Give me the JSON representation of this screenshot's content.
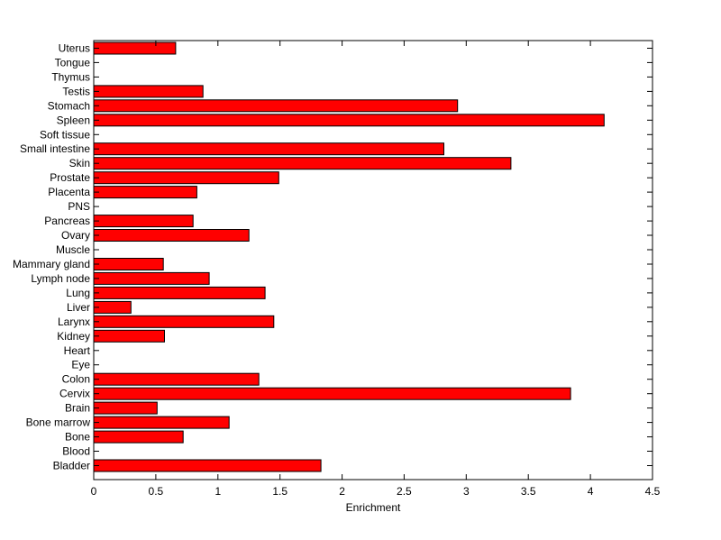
{
  "chart_data": {
    "type": "bar",
    "orientation": "horizontal",
    "xlabel": "Enrichment",
    "ylabel": "",
    "title": "",
    "xlim": [
      0,
      4.5
    ],
    "xticks": [
      0,
      0.5,
      1,
      1.5,
      2,
      2.5,
      3,
      3.5,
      4,
      4.5
    ],
    "xtick_labels": [
      "0",
      "0.5",
      "1",
      "1.5",
      "2",
      "2.5",
      "3",
      "3.5",
      "4",
      "4.5"
    ],
    "grid": false,
    "bar_color": "#ff0000",
    "bar_edge_color": "#000000",
    "categories": [
      "Bladder",
      "Blood",
      "Bone",
      "Bone marrow",
      "Brain",
      "Cervix",
      "Colon",
      "Eye",
      "Heart",
      "Kidney",
      "Larynx",
      "Liver",
      "Lung",
      "Lymph node",
      "Mammary gland",
      "Muscle",
      "Ovary",
      "Pancreas",
      "PNS",
      "Placenta",
      "Prostate",
      "Skin",
      "Small intestine",
      "Soft tissue",
      "Spleen",
      "Stomach",
      "Testis",
      "Thymus",
      "Tongue",
      "Uterus"
    ],
    "values": [
      1.83,
      0,
      0.72,
      1.09,
      0.51,
      3.84,
      1.33,
      0,
      0,
      0.57,
      1.45,
      0.3,
      1.38,
      0.93,
      0.56,
      0,
      1.25,
      0.8,
      0,
      0.83,
      1.49,
      3.36,
      2.82,
      0,
      4.11,
      2.93,
      0.88,
      0,
      0,
      0.66
    ]
  }
}
